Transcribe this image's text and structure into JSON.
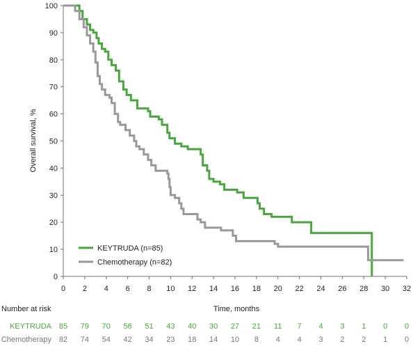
{
  "chart_data": {
    "type": "line",
    "subtype": "kaplan-meier step curve",
    "ylabel": "Overall survival, %",
    "xlabel": "Time, months",
    "xlim": [
      0,
      32
    ],
    "ylim": [
      0,
      100
    ],
    "x_ticks": [
      0,
      2,
      4,
      6,
      8,
      10,
      12,
      14,
      16,
      18,
      20,
      22,
      24,
      26,
      28,
      30,
      32
    ],
    "y_ticks": [
      0,
      10,
      20,
      30,
      40,
      50,
      60,
      70,
      80,
      90,
      100
    ],
    "grid": false,
    "legend_position": "bottom-left",
    "series": [
      {
        "name": "KEYTRUDA (n=85)",
        "color": "#4aa63f",
        "points": [
          [
            0,
            100
          ],
          [
            1,
            100
          ],
          [
            1.5,
            98
          ],
          [
            1.8,
            95
          ],
          [
            2.2,
            93
          ],
          [
            2.5,
            91
          ],
          [
            2.8,
            90
          ],
          [
            3.1,
            88
          ],
          [
            3.3,
            86
          ],
          [
            3.6,
            84
          ],
          [
            3.9,
            83
          ],
          [
            4.2,
            80
          ],
          [
            4.5,
            78
          ],
          [
            4.9,
            76
          ],
          [
            5.2,
            72
          ],
          [
            5.6,
            69
          ],
          [
            5.9,
            67
          ],
          [
            6.3,
            65
          ],
          [
            6.9,
            62
          ],
          [
            7.9,
            61
          ],
          [
            8.1,
            59
          ],
          [
            8.9,
            58
          ],
          [
            9.2,
            56
          ],
          [
            9.7,
            53
          ],
          [
            9.9,
            51
          ],
          [
            10.4,
            49
          ],
          [
            11,
            48
          ],
          [
            11.6,
            47
          ],
          [
            12.8,
            45
          ],
          [
            13,
            41
          ],
          [
            13.4,
            39
          ],
          [
            13.6,
            36
          ],
          [
            14,
            35
          ],
          [
            14.6,
            34
          ],
          [
            15,
            32
          ],
          [
            16.2,
            31
          ],
          [
            16.8,
            29
          ],
          [
            17.9,
            29
          ],
          [
            18.1,
            27
          ],
          [
            18.3,
            25
          ],
          [
            18.7,
            23
          ],
          [
            19.4,
            22
          ],
          [
            21.3,
            20
          ],
          [
            23.1,
            16
          ],
          [
            28.7,
            16
          ],
          [
            28.75,
            0
          ]
        ]
      },
      {
        "name": "Chemotherapy (n=82)",
        "color": "#999999",
        "points": [
          [
            0,
            100
          ],
          [
            1.1,
            98
          ],
          [
            1.5,
            95
          ],
          [
            1.9,
            92
          ],
          [
            2.2,
            89
          ],
          [
            2.5,
            86
          ],
          [
            2.8,
            83
          ],
          [
            3,
            79
          ],
          [
            3.2,
            74
          ],
          [
            3.4,
            71
          ],
          [
            3.6,
            69
          ],
          [
            3.9,
            67
          ],
          [
            4.3,
            66
          ],
          [
            4.5,
            64
          ],
          [
            4.8,
            60
          ],
          [
            5.1,
            57
          ],
          [
            5.3,
            56
          ],
          [
            5.8,
            54
          ],
          [
            6.2,
            52
          ],
          [
            6.6,
            50
          ],
          [
            6.8,
            48
          ],
          [
            7.1,
            47
          ],
          [
            7.5,
            45
          ],
          [
            7.9,
            43
          ],
          [
            8.2,
            41
          ],
          [
            8.6,
            39
          ],
          [
            9.7,
            38
          ],
          [
            9.8,
            36
          ],
          [
            9.9,
            33
          ],
          [
            10,
            30
          ],
          [
            10.4,
            29
          ],
          [
            10.8,
            27
          ],
          [
            11,
            25
          ],
          [
            11.2,
            23
          ],
          [
            12.5,
            21
          ],
          [
            12.8,
            20
          ],
          [
            13.2,
            18
          ],
          [
            14.7,
            17
          ],
          [
            15.8,
            15
          ],
          [
            16.1,
            13
          ],
          [
            16.5,
            13
          ],
          [
            19.7,
            12
          ],
          [
            20,
            11
          ],
          [
            28.3,
            11
          ],
          [
            28.4,
            6
          ],
          [
            28.6,
            6
          ],
          [
            31.7,
            6
          ]
        ]
      }
    ],
    "risk_table": {
      "title": "Number at risk",
      "rows": [
        {
          "label": "KEYTRUDA",
          "color": "#4aa63f",
          "values": [
            "85",
            "79",
            "70",
            "56",
            "51",
            "43",
            "40",
            "30",
            "27",
            "21",
            "11",
            "7",
            "4",
            "3",
            "1",
            "0",
            "0"
          ]
        },
        {
          "label": "Chemotherapy",
          "color": "#777777",
          "values": [
            "82",
            "74",
            "54",
            "42",
            "34",
            "23",
            "18",
            "14",
            "10",
            "8",
            "4",
            "4",
            "3",
            "2",
            "2",
            "1",
            "0"
          ]
        }
      ]
    }
  }
}
